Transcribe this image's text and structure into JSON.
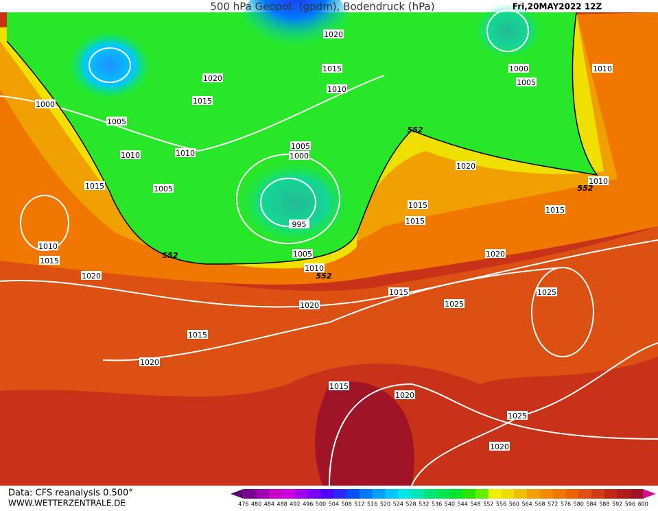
{
  "header": {
    "title": "500 hPa Geopot. (gpdm), Bodendruck (hPa)",
    "date": "Fri,20MAY2022 12Z"
  },
  "isobar_labels": [
    "1020",
    "1015",
    "1020",
    "1015",
    "1010",
    "1000",
    "1005",
    "1010",
    "1010",
    "1005",
    "1000",
    "1015",
    "1005",
    "995",
    "1010",
    "1015",
    "1005",
    "1010",
    "1020",
    "1020",
    "1015",
    "1020",
    "1000",
    "1005",
    "1010",
    "1020",
    "1010",
    "1015",
    "1015",
    "1015",
    "1020",
    "1015",
    "1025",
    "1025",
    "1015",
    "1020",
    "1025",
    "1020"
  ],
  "contour_labels": [
    "552",
    "552",
    "552",
    "552"
  ],
  "footer": {
    "source": "Data: CFS reanalysis 0.500°",
    "site": "WWW.WETTERZENTRALE.DE"
  },
  "colorbar": {
    "ticks": [
      476,
      480,
      484,
      488,
      492,
      496,
      500,
      504,
      508,
      512,
      516,
      520,
      524,
      528,
      532,
      536,
      540,
      544,
      548,
      552,
      556,
      560,
      564,
      568,
      572,
      576,
      580,
      584,
      588,
      592,
      596,
      600
    ],
    "colors": [
      "#5a006e",
      "#7a0090",
      "#a000b4",
      "#c800c8",
      "#d000e0",
      "#a000f0",
      "#7800ff",
      "#5000ff",
      "#2828ff",
      "#0050ff",
      "#0078ff",
      "#00a0ff",
      "#00c8ff",
      "#00e6e6",
      "#00e6b4",
      "#00e678",
      "#00e650",
      "#00e628",
      "#28e600",
      "#60f000",
      "#f0f000",
      "#f0dc00",
      "#f0c000",
      "#f0a000",
      "#f08c00",
      "#f07800",
      "#e86400",
      "#e05014",
      "#d03c14",
      "#c02814",
      "#b01c1c",
      "#a01428",
      "#d0108c"
    ]
  }
}
